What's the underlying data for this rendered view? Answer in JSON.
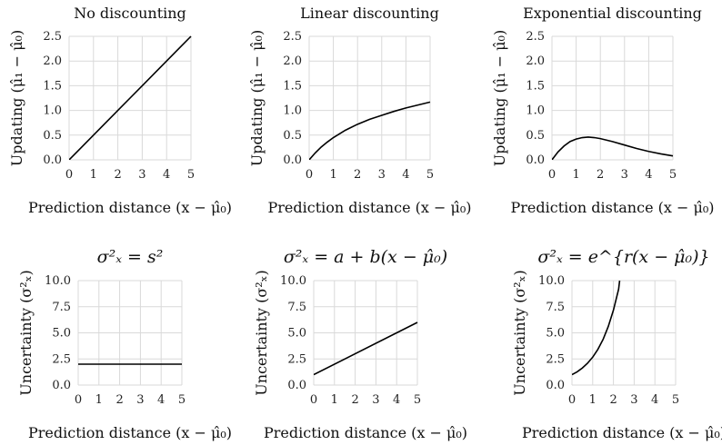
{
  "chart_data": [
    {
      "type": "line",
      "title": "No discounting",
      "xlabel": "Prediction distance (x − μ̂₀)",
      "ylabel": "Updating (μ̂₁ − μ̂₀)",
      "xlim": [
        0,
        5
      ],
      "ylim": [
        0,
        2.5
      ],
      "xticks": [
        "0",
        "1",
        "2",
        "3",
        "4",
        "5"
      ],
      "yticks": [
        "0.0",
        "0.5",
        "1.0",
        "1.5",
        "2.0",
        "2.5"
      ],
      "grid": true,
      "series": [
        {
          "x": [
            0,
            0.5,
            1,
            1.5,
            2,
            2.5,
            3,
            3.5,
            4,
            4.5,
            5
          ],
          "y": [
            0,
            0.25,
            0.5,
            0.75,
            1.0,
            1.25,
            1.5,
            1.75,
            2.0,
            2.25,
            2.5
          ]
        }
      ]
    },
    {
      "type": "line",
      "title": "Linear discounting",
      "xlabel": "Prediction distance (x − μ̂₀)",
      "ylabel": "Updating (μ̂₁ − μ̂₀)",
      "xlim": [
        0,
        5
      ],
      "ylim": [
        0,
        2.5
      ],
      "xticks": [
        "0",
        "1",
        "2",
        "3",
        "4",
        "5"
      ],
      "yticks": [
        "0.0",
        "0.5",
        "1.0",
        "1.5",
        "2.0",
        "2.5"
      ],
      "grid": true,
      "series": [
        {
          "x": [
            0,
            0.25,
            0.5,
            0.75,
            1,
            1.5,
            2,
            2.5,
            3,
            3.5,
            4,
            4.5,
            5
          ],
          "y": [
            0,
            0.14,
            0.26,
            0.36,
            0.45,
            0.6,
            0.72,
            0.82,
            0.9,
            0.98,
            1.05,
            1.11,
            1.17
          ]
        }
      ]
    },
    {
      "type": "line",
      "title": "Exponential discounting",
      "xlabel": "Prediction distance (x − μ̂₀)",
      "ylabel": "Updating (μ̂₁ − μ̂₀)",
      "xlim": [
        0,
        5
      ],
      "ylim": [
        0,
        2.5
      ],
      "xticks": [
        "0",
        "1",
        "2",
        "3",
        "4",
        "5"
      ],
      "yticks": [
        "0.0",
        "0.5",
        "1.0",
        "1.5",
        "2.0",
        "2.5"
      ],
      "grid": true,
      "series": [
        {
          "x": [
            0,
            0.25,
            0.5,
            0.75,
            1,
            1.25,
            1.5,
            1.75,
            2,
            2.5,
            3,
            3.5,
            4,
            4.5,
            5
          ],
          "y": [
            0,
            0.16,
            0.28,
            0.37,
            0.42,
            0.45,
            0.46,
            0.45,
            0.43,
            0.37,
            0.3,
            0.23,
            0.17,
            0.12,
            0.08
          ]
        }
      ]
    },
    {
      "type": "line",
      "title": "σ²ₓ = s²",
      "xlabel": "Prediction distance (x − μ̂₀)",
      "ylabel": "Uncertainty (σ²ₓ)",
      "xlim": [
        0,
        5
      ],
      "ylim": [
        0,
        10
      ],
      "xticks": [
        "0",
        "1",
        "2",
        "3",
        "4",
        "5"
      ],
      "yticks": [
        "0.0",
        "2.5",
        "5.0",
        "7.5",
        "10.0"
      ],
      "grid": true,
      "series": [
        {
          "x": [
            0,
            5
          ],
          "y": [
            2,
            2
          ]
        }
      ]
    },
    {
      "type": "line",
      "title": "σ²ₓ = a + b(x − μ̂₀)",
      "xlabel": "Prediction distance (x − μ̂₀)",
      "ylabel": "Uncertainty (σ²ₓ)",
      "xlim": [
        0,
        5
      ],
      "ylim": [
        0,
        10
      ],
      "xticks": [
        "0",
        "1",
        "2",
        "3",
        "4",
        "5"
      ],
      "yticks": [
        "0.0",
        "2.5",
        "5.0",
        "7.5",
        "10.0"
      ],
      "grid": true,
      "series": [
        {
          "x": [
            0,
            5
          ],
          "y": [
            1,
            6
          ]
        }
      ]
    },
    {
      "type": "line",
      "title": "σ²ₓ = e^{r(x − μ̂₀)}",
      "xlabel": "Prediction distance (x − μ̂₀)",
      "ylabel": "Uncertainty (σ²ₓ)",
      "xlim": [
        0,
        5
      ],
      "ylim": [
        0,
        10
      ],
      "xticks": [
        "0",
        "1",
        "2",
        "3",
        "4",
        "5"
      ],
      "yticks": [
        "0.0",
        "2.5",
        "5.0",
        "7.5",
        "10.0"
      ],
      "grid": true,
      "series": [
        {
          "x": [
            0,
            0.25,
            0.5,
            0.75,
            1,
            1.25,
            1.5,
            1.75,
            2,
            2.25,
            2.3
          ],
          "y": [
            1,
            1.27,
            1.63,
            2.09,
            2.67,
            3.42,
            4.37,
            5.6,
            7.17,
            9.18,
            10.0
          ]
        }
      ]
    }
  ]
}
